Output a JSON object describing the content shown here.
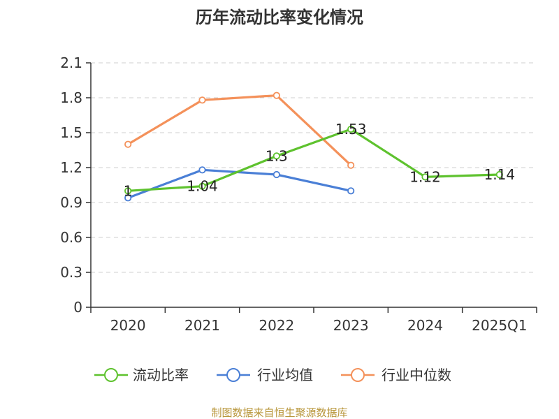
{
  "chart_data": {
    "type": "line",
    "title": "历年流动比率变化情况",
    "categories": [
      "2020",
      "2021",
      "2022",
      "2023",
      "2024",
      "2025Q1"
    ],
    "yticks": [
      "0",
      "0.3",
      "0.6",
      "0.9",
      "1.2",
      "1.5",
      "1.8",
      "2.1"
    ],
    "ylim": [
      0,
      2.1
    ],
    "grid": true,
    "series": [
      {
        "name": "流动比率",
        "color": "#5ec22e",
        "values": [
          1.0,
          1.04,
          1.3,
          1.53,
          1.12,
          1.14
        ],
        "labels": [
          "1",
          "1.04",
          "1.3",
          "1.53",
          "1.12",
          "1.14"
        ]
      },
      {
        "name": "行业均值",
        "color": "#4a7fd6",
        "values": [
          0.94,
          1.18,
          1.14,
          1.0,
          null,
          null
        ]
      },
      {
        "name": "行业中位数",
        "color": "#f4915a",
        "values": [
          1.4,
          1.78,
          1.82,
          1.22,
          null,
          null
        ]
      }
    ],
    "legend_position": "bottom",
    "source": "制图数据来自恒生聚源数据库"
  }
}
